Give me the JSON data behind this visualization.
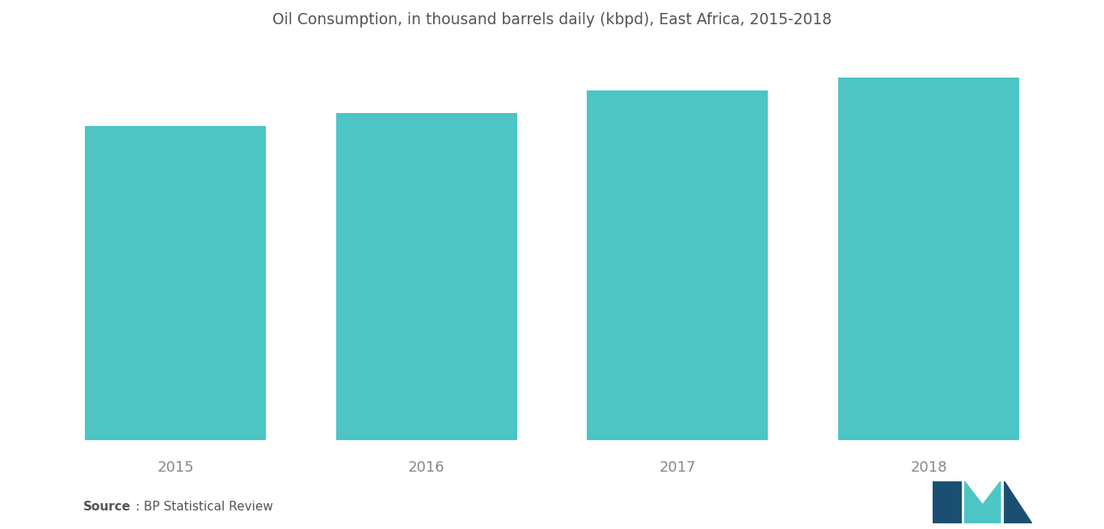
{
  "title": "Oil Consumption, in thousand barrels daily (kbpd), East Africa, 2015-2018",
  "categories": [
    "2015",
    "2016",
    "2017",
    "2018"
  ],
  "values": [
    490,
    510,
    545,
    565
  ],
  "bar_color": "#4DC5C5",
  "background_color": "#ffffff",
  "title_fontsize": 13.5,
  "tick_fontsize": 13,
  "source_bold": "Source",
  "source_text": " : BP Statistical Review",
  "source_fontsize": 11,
  "ylim": [
    0,
    610
  ],
  "bar_width": 0.72,
  "figsize": [
    13.66,
    6.55
  ],
  "dpi": 100,
  "logo_left_color": "#1B4F72",
  "logo_mid_color": "#4DC5C5",
  "logo_right_color": "#1B4F72"
}
